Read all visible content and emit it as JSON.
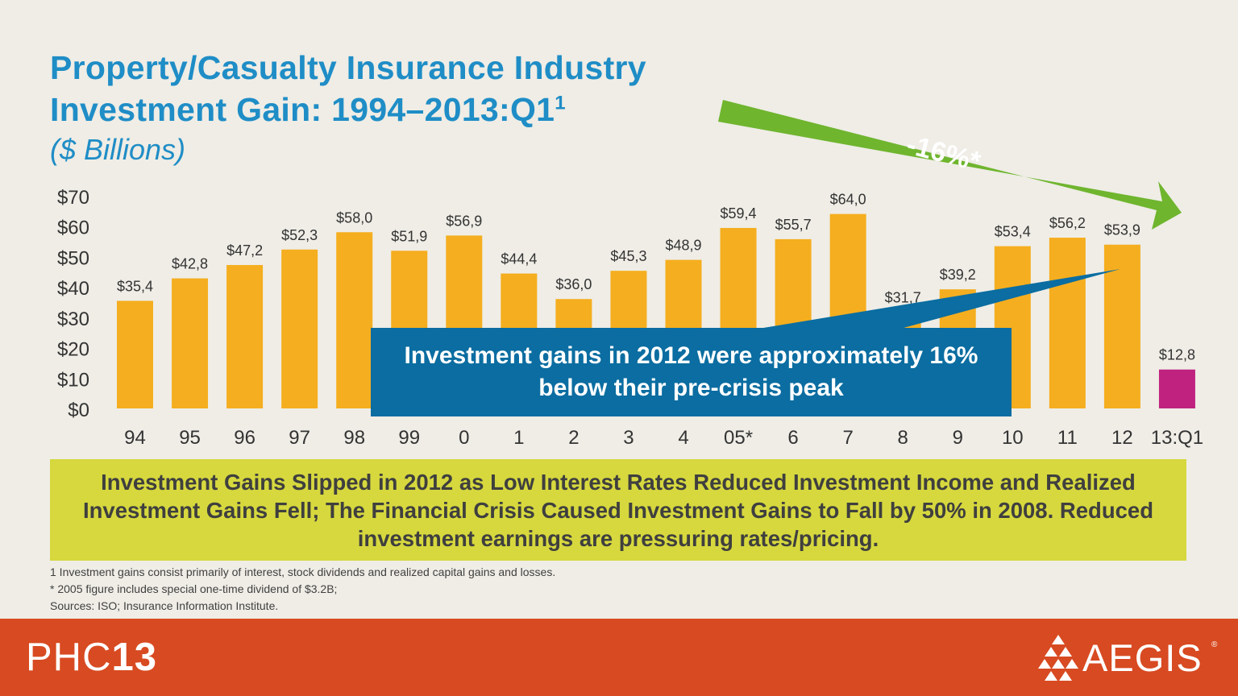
{
  "title_line1": "Property/Casualty Insurance Industry",
  "title_line2": "Investment Gain: 1994–2013:Q1",
  "title_sup": "1",
  "subtitle": "($ Billions)",
  "arrow_label": "-16%*",
  "callout": "Investment gains in 2012 were approximately 16% below their pre-crisis peak",
  "banner": "Investment Gains Slipped in 2012 as Low Interest Rates Reduced Investment Income and Realized Investment Gains Fell; The Financial Crisis Caused Investment Gains to Fall by 50% in 2008.  Reduced investment earnings are pressuring rates/pricing.",
  "footnotes": [
    "1 Investment gains consist primarily of interest, stock dividends and realized capital gains and losses.",
    "* 2005 figure includes special one-time dividend of $3.2B;",
    "Sources: ISO; Insurance Information Institute."
  ],
  "footer": {
    "brand_prefix": "PHC",
    "brand_number": "13",
    "logo_text": "AEGIS",
    "logo_reg": "®"
  },
  "colors": {
    "bar": "#f5ae1f",
    "highlight_bar": "#c0237f",
    "arrow": "#6fb52e",
    "callout": "#0b6da1",
    "title": "#1f8dc6",
    "banner": "#d6d83e",
    "footer": "#d84a21"
  },
  "chart_data": {
    "type": "bar",
    "title": "Property/Casualty Insurance Industry Investment Gain: 1994–2013:Q1",
    "ylabel": "($ Billions)",
    "ylim": [
      0,
      70
    ],
    "y_ticks": [
      "$0",
      "$10",
      "$20",
      "$30",
      "$40",
      "$50",
      "$60",
      "$70"
    ],
    "y_tick_values": [
      0,
      10,
      20,
      30,
      40,
      50,
      60,
      70
    ],
    "categories": [
      "94",
      "95",
      "96",
      "97",
      "98",
      "99",
      "0",
      "1",
      "2",
      "3",
      "4",
      "05*",
      "6",
      "7",
      "8",
      "9",
      "10",
      "11",
      "12",
      "13:Q1"
    ],
    "values": [
      35.4,
      42.8,
      47.2,
      52.3,
      58.0,
      51.9,
      56.9,
      44.4,
      36.0,
      45.3,
      48.9,
      59.4,
      55.7,
      64.0,
      31.7,
      39.2,
      53.4,
      56.2,
      53.9,
      12.8
    ],
    "labels": [
      "$35,4",
      "$42,8",
      "$47,2",
      "$52,3",
      "$58,0",
      "$51,9",
      "$56,9",
      "$44,4",
      "$36,0",
      "$45,3",
      "$48,9",
      "$59,4",
      "$55,7",
      "$64,0",
      "$31,7",
      "$39,2",
      "$53,4",
      "$56,2",
      "$53,9",
      "$12,8"
    ],
    "highlight": "13:Q1",
    "grid": false,
    "legend": "none"
  }
}
